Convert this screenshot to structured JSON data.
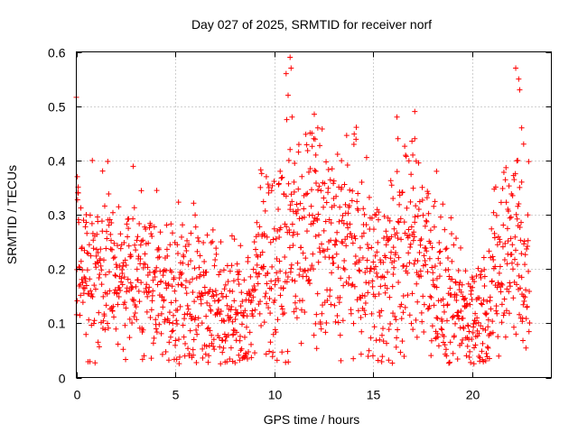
{
  "chart_data": {
    "type": "scatter",
    "title": "Day 027 of 2025, SRMTID for receiver norf",
    "xlabel": "GPS time / hours",
    "ylabel": "SRMTID / TECUs",
    "xlim": [
      0,
      24
    ],
    "ylim": [
      0,
      0.6
    ],
    "xticks": [
      0,
      5,
      10,
      15,
      20
    ],
    "xtick_labels": [
      "0",
      "5",
      "10",
      "15",
      "20"
    ],
    "yticks": [
      0,
      0.1,
      0.2,
      0.3,
      0.4,
      0.5,
      0.6
    ],
    "ytick_labels": [
      "0",
      "0.1",
      "0.2",
      "0.3",
      "0.4",
      "0.5",
      "0.6"
    ],
    "grid": true,
    "marker": "plus",
    "color": "#ff0000",
    "x_end": 22.9,
    "trend": [
      [
        0.0,
        0.3
      ],
      [
        0.5,
        0.2
      ],
      [
        1.0,
        0.19
      ],
      [
        1.5,
        0.19
      ],
      [
        2.0,
        0.18
      ],
      [
        2.5,
        0.2
      ],
      [
        3.0,
        0.19
      ],
      [
        3.5,
        0.18
      ],
      [
        4.0,
        0.17
      ],
      [
        4.5,
        0.16
      ],
      [
        5.0,
        0.16
      ],
      [
        5.5,
        0.16
      ],
      [
        6.0,
        0.16
      ],
      [
        6.5,
        0.15
      ],
      [
        7.0,
        0.13
      ],
      [
        7.5,
        0.12
      ],
      [
        8.0,
        0.11
      ],
      [
        8.5,
        0.12
      ],
      [
        9.0,
        0.15
      ],
      [
        9.5,
        0.25
      ],
      [
        10.0,
        0.18
      ],
      [
        10.5,
        0.22
      ],
      [
        11.0,
        0.25
      ],
      [
        11.5,
        0.27
      ],
      [
        12.0,
        0.26
      ],
      [
        12.5,
        0.24
      ],
      [
        13.0,
        0.23
      ],
      [
        13.5,
        0.25
      ],
      [
        14.0,
        0.25
      ],
      [
        14.5,
        0.2
      ],
      [
        15.0,
        0.19
      ],
      [
        15.5,
        0.18
      ],
      [
        16.0,
        0.2
      ],
      [
        16.5,
        0.23
      ],
      [
        17.0,
        0.24
      ],
      [
        17.5,
        0.25
      ],
      [
        18.0,
        0.21
      ],
      [
        18.5,
        0.14
      ],
      [
        19.0,
        0.12
      ],
      [
        19.5,
        0.12
      ],
      [
        20.0,
        0.12
      ],
      [
        20.5,
        0.11
      ],
      [
        21.0,
        0.17
      ],
      [
        21.5,
        0.2
      ],
      [
        22.0,
        0.28
      ],
      [
        22.5,
        0.21
      ],
      [
        22.9,
        0.18
      ]
    ],
    "spikes": [
      [
        0.05,
        0.37
      ],
      [
        0.1,
        0.34
      ],
      [
        0.5,
        0.3
      ],
      [
        1.1,
        0.065
      ],
      [
        9.3,
        0.35
      ],
      [
        9.6,
        0.37
      ],
      [
        10.2,
        0.31
      ],
      [
        10.3,
        0.38
      ],
      [
        10.6,
        0.56
      ],
      [
        10.7,
        0.52
      ],
      [
        10.8,
        0.59
      ],
      [
        10.85,
        0.57
      ],
      [
        10.9,
        0.48
      ],
      [
        10.8,
        0.42
      ],
      [
        11.0,
        0.36
      ],
      [
        11.9,
        0.45
      ],
      [
        12.0,
        0.44
      ],
      [
        12.1,
        0.41
      ],
      [
        12.2,
        0.46
      ],
      [
        12.1,
        0.38
      ],
      [
        13.0,
        0.33
      ],
      [
        13.4,
        0.35
      ],
      [
        16.2,
        0.48
      ],
      [
        16.25,
        0.44
      ],
      [
        17.1,
        0.49
      ],
      [
        17.1,
        0.44
      ],
      [
        17.0,
        0.41
      ],
      [
        18.2,
        0.38
      ],
      [
        16.0,
        0.33
      ],
      [
        18.9,
        0.065
      ],
      [
        20.1,
        0.055
      ],
      [
        22.2,
        0.57
      ],
      [
        22.35,
        0.55
      ],
      [
        22.4,
        0.53
      ],
      [
        22.5,
        0.46
      ],
      [
        22.6,
        0.43
      ],
      [
        22.3,
        0.4
      ],
      [
        22.5,
        0.36
      ],
      [
        21.8,
        0.31
      ],
      [
        7.9,
        0.03
      ],
      [
        8.3,
        0.05
      ]
    ]
  }
}
